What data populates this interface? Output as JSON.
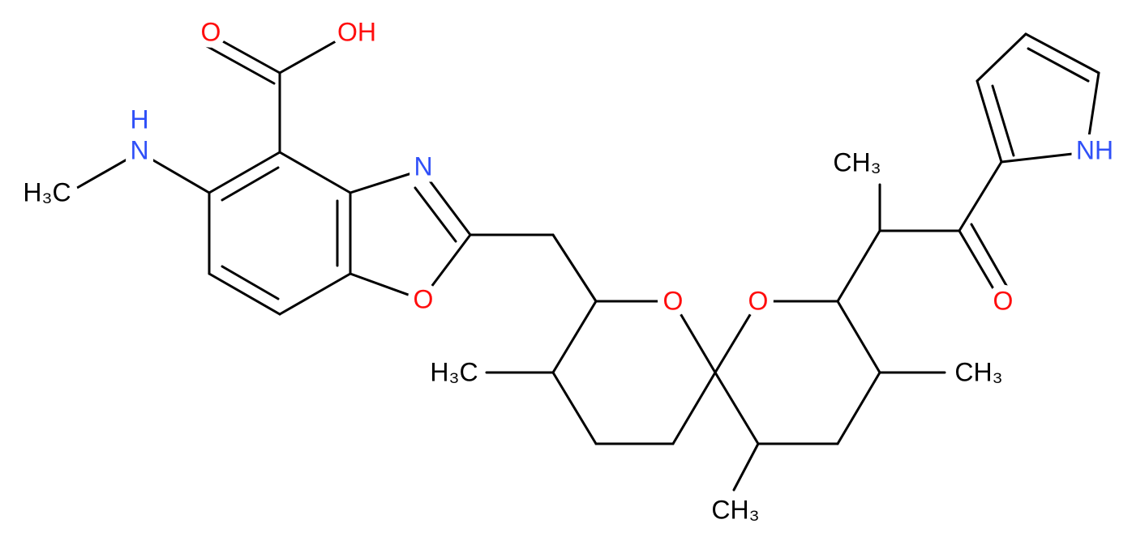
{
  "atoms": [
    {
      "label": "O"
    },
    {
      "label": "OH"
    },
    {
      "label": "N"
    },
    {
      "label": "H"
    },
    {
      "label": "H₃C"
    },
    {
      "label": "N"
    },
    {
      "label": "O"
    },
    {
      "label": "O"
    },
    {
      "label": "O"
    },
    {
      "label": "H₃C"
    },
    {
      "label": "CH₃"
    },
    {
      "label": "CH₃"
    },
    {
      "label": "CH₃"
    },
    {
      "label": "O"
    },
    {
      "label": "NH"
    }
  ]
}
